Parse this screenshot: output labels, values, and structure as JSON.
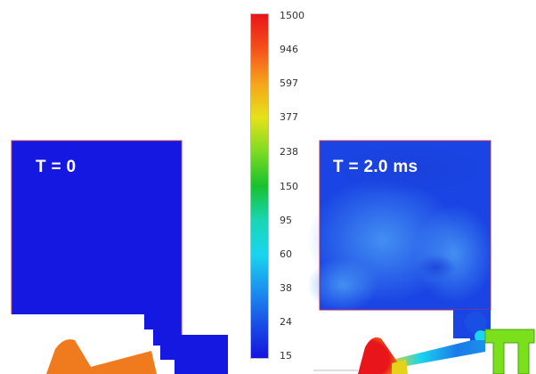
{
  "panels": [
    {
      "id": "left",
      "label": "T = 0"
    },
    {
      "id": "right",
      "label": "T = 2.0 ms"
    }
  ],
  "colorbar": {
    "ticks": [
      "1500",
      "946",
      "597",
      "377",
      "238",
      "150",
      "95",
      "60",
      "38",
      "24",
      "15"
    ],
    "colors": [
      "#e8151a",
      "#f5501b",
      "#f5a31b",
      "#e6e21a",
      "#7ddb22",
      "#17c12f",
      "#19d6b5",
      "#1ad5ee",
      "#1a92ee",
      "#1a4fe6",
      "#1414dd"
    ]
  },
  "colors": {
    "cold": "#1418e0",
    "cold_light": "#2f6ff0",
    "hot": "#e8151a",
    "warm": "#f07a1e",
    "green": "#7be01c",
    "outline": "#b03060"
  }
}
